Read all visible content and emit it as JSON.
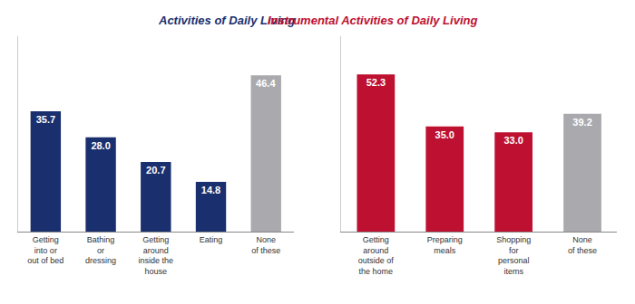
{
  "chart_data": [
    {
      "type": "bar",
      "title": "Activities of Daily Living",
      "categories": [
        "Getting\ninto or\nout of bed",
        "Bathing\nor\ndressing",
        "Getting\naround\ninside the\nhouse",
        "Eating",
        "None\nof these"
      ],
      "values": [
        35.7,
        28.0,
        20.7,
        14.8,
        46.4
      ],
      "value_labels": [
        "35.7",
        "28.0",
        "20.7",
        "14.8",
        "46.4"
      ],
      "colors": [
        "#1a2f6e",
        "#1a2f6e",
        "#1a2f6e",
        "#1a2f6e",
        "#aaaaae"
      ],
      "ylim": [
        0,
        58
      ],
      "data_labels": true,
      "tick_labels": "x",
      "grid": false
    },
    {
      "type": "bar",
      "title": "Instrumental Activities of Daily Living",
      "categories": [
        "Getting\naround\noutside of\nthe home",
        "Preparing\nmeals",
        "Shopping\nfor\npersonal\nitems",
        "None\nof these"
      ],
      "values": [
        52.3,
        35.0,
        33.0,
        39.2
      ],
      "value_labels": [
        "52.3",
        "35.0",
        "33.0",
        "39.2"
      ],
      "colors": [
        "#be1030",
        "#be1030",
        "#be1030",
        "#aaaaae"
      ],
      "ylim": [
        0,
        65
      ],
      "data_labels": true,
      "tick_labels": "x",
      "grid": false
    }
  ]
}
